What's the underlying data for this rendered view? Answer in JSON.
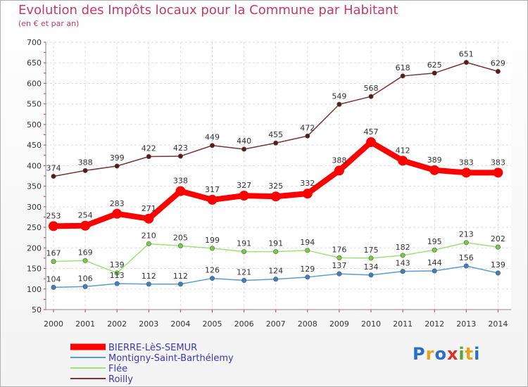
{
  "chart_data": {
    "type": "line",
    "title": "Evolution des Impôts locaux pour la Commune par Habitant",
    "subtitle": "(en € et par an)",
    "categories": [
      "2000",
      "2001",
      "2002",
      "2003",
      "2004",
      "2005",
      "2006",
      "2007",
      "2008",
      "2009",
      "2010",
      "2011",
      "2012",
      "2013",
      "2014"
    ],
    "ylim": [
      50,
      700
    ],
    "yticks": [
      50,
      100,
      150,
      200,
      250,
      300,
      350,
      400,
      450,
      500,
      550,
      600,
      650,
      700
    ],
    "grid": true,
    "legend_position": "bottom-left",
    "series": [
      {
        "name": "BIERRE-LèS-SEMUR",
        "color": "#ff0000",
        "marker": "#ff0000",
        "values": [
          253,
          254,
          283,
          271,
          338,
          317,
          327,
          325,
          332,
          388,
          457,
          412,
          389,
          383,
          383
        ],
        "labels": [
          "253",
          "254",
          "283",
          "271",
          "338",
          "317",
          "327",
          "325",
          "332",
          "388",
          "457",
          "412",
          "389",
          "383",
          "383"
        ]
      },
      {
        "name": "Montigny-Saint-Barthélemy",
        "color": "#5b9bd5",
        "marker": "#3d7fc0",
        "values": [
          104,
          106,
          113,
          112,
          112,
          126,
          121,
          124,
          129,
          137,
          134,
          143,
          144,
          156,
          139
        ],
        "labels": [
          "104",
          "106",
          "113",
          "112",
          "112",
          "126",
          "121",
          "124",
          "129",
          "137",
          "134",
          "143",
          "144",
          "156",
          "139"
        ]
      },
      {
        "name": "Flée",
        "color": "#9ee07a",
        "marker": "#77cc44",
        "values": [
          167,
          169,
          139,
          210,
          205,
          199,
          191,
          191,
          194,
          176,
          175,
          182,
          195,
          213,
          202
        ],
        "labels": [
          "167",
          "169",
          "139",
          "210",
          "205",
          "199",
          "191",
          "191",
          "194",
          "176",
          "175",
          "182",
          "195",
          "213",
          "202"
        ]
      },
      {
        "name": "Roilly",
        "color": "#7a3535",
        "marker": "#5a1a1a",
        "values": [
          374,
          388,
          399,
          422,
          423,
          449,
          440,
          455,
          472,
          549,
          568,
          618,
          625,
          651,
          629
        ],
        "labels": [
          "374",
          "388",
          "399",
          "422",
          "423",
          "449",
          "440",
          "455",
          "472",
          "549",
          "568",
          "618",
          "625",
          "651",
          "629"
        ]
      }
    ]
  },
  "logo": {
    "letters": [
      "P",
      "r",
      "o",
      "x",
      "i",
      "t",
      "i"
    ],
    "colors": [
      "#2a6ec9",
      "#e8a21a",
      "#2a6ec9",
      "#d8322b",
      "#5aa832",
      "#e8a21a",
      "#2a6ec9"
    ]
  }
}
